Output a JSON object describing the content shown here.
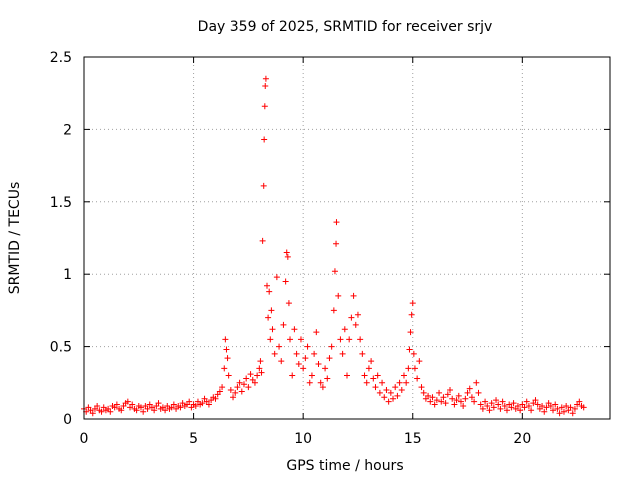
{
  "chart_data": {
    "type": "scatter",
    "title": "Day 359 of 2025, SRMTID for receiver srjv",
    "xlabel": "GPS time / hours",
    "ylabel": "SRMTID / TECUs",
    "xlim": [
      0,
      24
    ],
    "ylim": [
      0,
      2.5
    ],
    "grid": true,
    "marker": "+",
    "color": "#ff0000",
    "xticks": [
      {
        "value": 0,
        "label": "0"
      },
      {
        "value": 5,
        "label": "5"
      },
      {
        "value": 10,
        "label": "10"
      },
      {
        "value": 15,
        "label": "15"
      },
      {
        "value": 20,
        "label": "20"
      }
    ],
    "yticks": [
      {
        "value": 0,
        "label": "0"
      },
      {
        "value": 0.5,
        "label": "0.5"
      },
      {
        "value": 1,
        "label": "1"
      },
      {
        "value": 1.5,
        "label": "1.5"
      },
      {
        "value": 2,
        "label": "2"
      },
      {
        "value": 2.5,
        "label": "2.5"
      }
    ],
    "series": [
      {
        "name": "SRMTID",
        "points": [
          [
            0.0,
            0.07
          ],
          [
            0.1,
            0.05
          ],
          [
            0.2,
            0.08
          ],
          [
            0.3,
            0.06
          ],
          [
            0.4,
            0.04
          ],
          [
            0.5,
            0.07
          ],
          [
            0.6,
            0.09
          ],
          [
            0.7,
            0.06
          ],
          [
            0.8,
            0.05
          ],
          [
            0.9,
            0.08
          ],
          [
            1.0,
            0.06
          ],
          [
            1.1,
            0.07
          ],
          [
            1.2,
            0.05
          ],
          [
            1.3,
            0.09
          ],
          [
            1.4,
            0.08
          ],
          [
            1.5,
            0.1
          ],
          [
            1.6,
            0.07
          ],
          [
            1.7,
            0.06
          ],
          [
            1.8,
            0.09
          ],
          [
            1.9,
            0.11
          ],
          [
            2.0,
            0.12
          ],
          [
            2.1,
            0.08
          ],
          [
            2.2,
            0.1
          ],
          [
            2.3,
            0.07
          ],
          [
            2.4,
            0.06
          ],
          [
            2.5,
            0.09
          ],
          [
            2.6,
            0.08
          ],
          [
            2.7,
            0.05
          ],
          [
            2.8,
            0.09
          ],
          [
            2.9,
            0.07
          ],
          [
            3.0,
            0.1
          ],
          [
            3.1,
            0.08
          ],
          [
            3.2,
            0.06
          ],
          [
            3.3,
            0.09
          ],
          [
            3.4,
            0.11
          ],
          [
            3.5,
            0.07
          ],
          [
            3.6,
            0.08
          ],
          [
            3.7,
            0.06
          ],
          [
            3.8,
            0.09
          ],
          [
            3.9,
            0.07
          ],
          [
            4.0,
            0.08
          ],
          [
            4.1,
            0.1
          ],
          [
            4.2,
            0.07
          ],
          [
            4.3,
            0.09
          ],
          [
            4.4,
            0.08
          ],
          [
            4.5,
            0.11
          ],
          [
            4.6,
            0.09
          ],
          [
            4.7,
            0.1
          ],
          [
            4.8,
            0.12
          ],
          [
            4.9,
            0.08
          ],
          [
            5.0,
            0.1
          ],
          [
            5.1,
            0.09
          ],
          [
            5.2,
            0.12
          ],
          [
            5.3,
            0.1
          ],
          [
            5.4,
            0.11
          ],
          [
            5.5,
            0.14
          ],
          [
            5.6,
            0.12
          ],
          [
            5.7,
            0.1
          ],
          [
            5.8,
            0.13
          ],
          [
            5.9,
            0.15
          ],
          [
            6.0,
            0.14
          ],
          [
            6.1,
            0.17
          ],
          [
            6.2,
            0.19
          ],
          [
            6.3,
            0.22
          ],
          [
            6.4,
            0.35
          ],
          [
            6.45,
            0.55
          ],
          [
            6.5,
            0.48
          ],
          [
            6.55,
            0.42
          ],
          [
            6.6,
            0.3
          ],
          [
            6.7,
            0.2
          ],
          [
            6.8,
            0.15
          ],
          [
            6.9,
            0.18
          ],
          [
            7.0,
            0.22
          ],
          [
            7.1,
            0.25
          ],
          [
            7.2,
            0.19
          ],
          [
            7.3,
            0.24
          ],
          [
            7.4,
            0.28
          ],
          [
            7.5,
            0.22
          ],
          [
            7.6,
            0.31
          ],
          [
            7.7,
            0.27
          ],
          [
            7.8,
            0.25
          ],
          [
            7.9,
            0.3
          ],
          [
            8.0,
            0.35
          ],
          [
            8.05,
            0.4
          ],
          [
            8.1,
            0.32
          ],
          [
            8.15,
            1.23
          ],
          [
            8.2,
            1.61
          ],
          [
            8.22,
            1.93
          ],
          [
            8.25,
            2.16
          ],
          [
            8.27,
            2.3
          ],
          [
            8.3,
            2.35
          ],
          [
            8.35,
            0.92
          ],
          [
            8.4,
            0.7
          ],
          [
            8.45,
            0.88
          ],
          [
            8.5,
            0.55
          ],
          [
            8.55,
            0.75
          ],
          [
            8.6,
            0.62
          ],
          [
            8.7,
            0.45
          ],
          [
            8.8,
            0.98
          ],
          [
            8.9,
            0.5
          ],
          [
            9.0,
            0.4
          ],
          [
            9.1,
            0.65
          ],
          [
            9.2,
            0.95
          ],
          [
            9.25,
            1.15
          ],
          [
            9.3,
            1.12
          ],
          [
            9.35,
            0.8
          ],
          [
            9.4,
            0.55
          ],
          [
            9.5,
            0.3
          ],
          [
            9.6,
            0.62
          ],
          [
            9.7,
            0.45
          ],
          [
            9.8,
            0.38
          ],
          [
            9.9,
            0.55
          ],
          [
            10.0,
            0.35
          ],
          [
            10.1,
            0.42
          ],
          [
            10.2,
            0.5
          ],
          [
            10.3,
            0.25
          ],
          [
            10.4,
            0.3
          ],
          [
            10.5,
            0.45
          ],
          [
            10.6,
            0.6
          ],
          [
            10.7,
            0.38
          ],
          [
            10.8,
            0.25
          ],
          [
            10.9,
            0.22
          ],
          [
            11.0,
            0.35
          ],
          [
            11.1,
            0.28
          ],
          [
            11.2,
            0.42
          ],
          [
            11.3,
            0.5
          ],
          [
            11.4,
            0.75
          ],
          [
            11.45,
            1.02
          ],
          [
            11.5,
            1.21
          ],
          [
            11.52,
            1.36
          ],
          [
            11.6,
            0.85
          ],
          [
            11.7,
            0.55
          ],
          [
            11.8,
            0.45
          ],
          [
            11.9,
            0.62
          ],
          [
            12.0,
            0.3
          ],
          [
            12.1,
            0.55
          ],
          [
            12.2,
            0.7
          ],
          [
            12.3,
            0.85
          ],
          [
            12.4,
            0.65
          ],
          [
            12.5,
            0.72
          ],
          [
            12.6,
            0.55
          ],
          [
            12.7,
            0.45
          ],
          [
            12.8,
            0.3
          ],
          [
            12.9,
            0.25
          ],
          [
            13.0,
            0.35
          ],
          [
            13.1,
            0.4
          ],
          [
            13.2,
            0.28
          ],
          [
            13.3,
            0.22
          ],
          [
            13.4,
            0.3
          ],
          [
            13.5,
            0.18
          ],
          [
            13.6,
            0.25
          ],
          [
            13.7,
            0.15
          ],
          [
            13.8,
            0.2
          ],
          [
            13.9,
            0.12
          ],
          [
            14.0,
            0.18
          ],
          [
            14.1,
            0.14
          ],
          [
            14.2,
            0.22
          ],
          [
            14.3,
            0.16
          ],
          [
            14.4,
            0.25
          ],
          [
            14.5,
            0.2
          ],
          [
            14.6,
            0.3
          ],
          [
            14.7,
            0.25
          ],
          [
            14.8,
            0.35
          ],
          [
            14.85,
            0.48
          ],
          [
            14.9,
            0.6
          ],
          [
            14.95,
            0.72
          ],
          [
            15.0,
            0.8
          ],
          [
            15.05,
            0.45
          ],
          [
            15.1,
            0.35
          ],
          [
            15.2,
            0.28
          ],
          [
            15.3,
            0.4
          ],
          [
            15.4,
            0.22
          ],
          [
            15.5,
            0.18
          ],
          [
            15.6,
            0.14
          ],
          [
            15.7,
            0.16
          ],
          [
            15.8,
            0.12
          ],
          [
            15.9,
            0.15
          ],
          [
            16.0,
            0.1
          ],
          [
            16.1,
            0.13
          ],
          [
            16.2,
            0.18
          ],
          [
            16.3,
            0.12
          ],
          [
            16.4,
            0.15
          ],
          [
            16.5,
            0.11
          ],
          [
            16.6,
            0.17
          ],
          [
            16.7,
            0.2
          ],
          [
            16.8,
            0.14
          ],
          [
            16.9,
            0.1
          ],
          [
            17.0,
            0.13
          ],
          [
            17.1,
            0.16
          ],
          [
            17.2,
            0.12
          ],
          [
            17.3,
            0.09
          ],
          [
            17.4,
            0.14
          ],
          [
            17.5,
            0.18
          ],
          [
            17.6,
            0.21
          ],
          [
            17.7,
            0.15
          ],
          [
            17.8,
            0.12
          ],
          [
            17.9,
            0.25
          ],
          [
            18.0,
            0.18
          ],
          [
            18.1,
            0.1
          ],
          [
            18.2,
            0.07
          ],
          [
            18.3,
            0.12
          ],
          [
            18.4,
            0.09
          ],
          [
            18.5,
            0.06
          ],
          [
            18.6,
            0.11
          ],
          [
            18.7,
            0.08
          ],
          [
            18.8,
            0.13
          ],
          [
            18.9,
            0.1
          ],
          [
            19.0,
            0.07
          ],
          [
            19.1,
            0.12
          ],
          [
            19.2,
            0.09
          ],
          [
            19.3,
            0.06
          ],
          [
            19.4,
            0.1
          ],
          [
            19.5,
            0.08
          ],
          [
            19.6,
            0.11
          ],
          [
            19.7,
            0.07
          ],
          [
            19.8,
            0.09
          ],
          [
            19.9,
            0.06
          ],
          [
            20.0,
            0.1
          ],
          [
            20.1,
            0.08
          ],
          [
            20.2,
            0.12
          ],
          [
            20.3,
            0.09
          ],
          [
            20.4,
            0.06
          ],
          [
            20.5,
            0.11
          ],
          [
            20.6,
            0.13
          ],
          [
            20.7,
            0.1
          ],
          [
            20.8,
            0.07
          ],
          [
            20.9,
            0.09
          ],
          [
            21.0,
            0.05
          ],
          [
            21.1,
            0.08
          ],
          [
            21.2,
            0.11
          ],
          [
            21.3,
            0.09
          ],
          [
            21.4,
            0.06
          ],
          [
            21.5,
            0.1
          ],
          [
            21.6,
            0.07
          ],
          [
            21.7,
            0.04
          ],
          [
            21.8,
            0.08
          ],
          [
            21.9,
            0.05
          ],
          [
            22.0,
            0.09
          ],
          [
            22.1,
            0.06
          ],
          [
            22.2,
            0.08
          ],
          [
            22.3,
            0.04
          ],
          [
            22.4,
            0.07
          ],
          [
            22.5,
            0.1
          ],
          [
            22.6,
            0.12
          ],
          [
            22.7,
            0.09
          ],
          [
            22.8,
            0.08
          ]
        ]
      }
    ]
  }
}
